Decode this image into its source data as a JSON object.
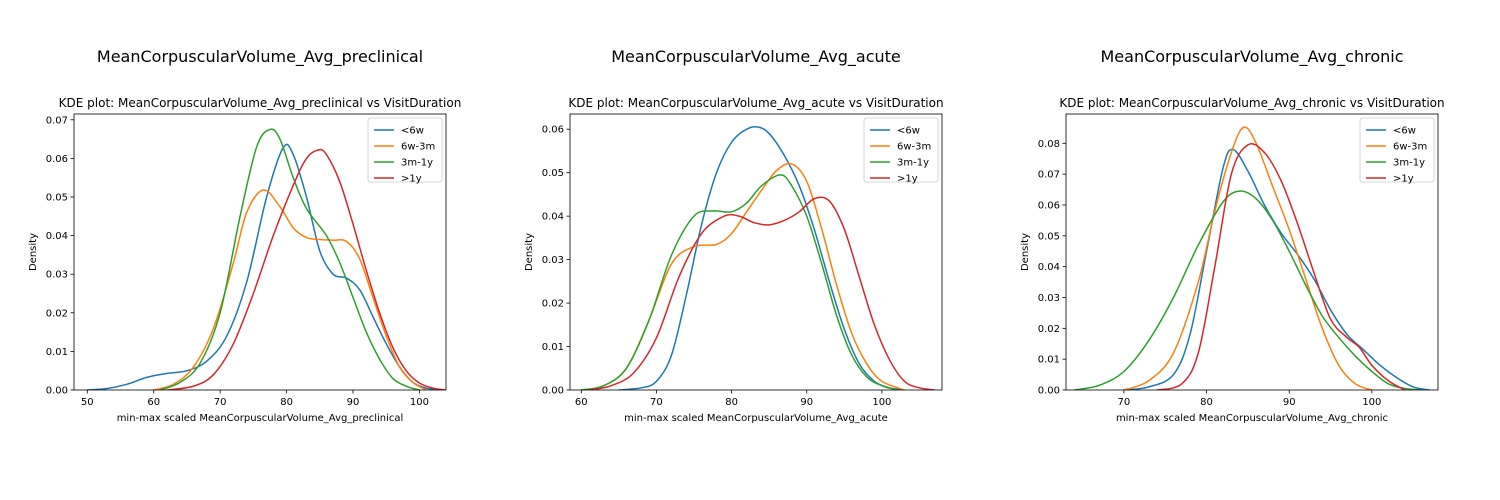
{
  "legend_labels": [
    "<6w",
    "6w-3m",
    "3m-1y",
    ">1y"
  ],
  "colors": [
    "#1f77b4",
    "#ff7f0e",
    "#2ca02c",
    "#d62728"
  ],
  "chart_data": [
    {
      "type": "line",
      "suptitle": "MeanCorpuscularVolume_Avg_preclinical",
      "title": "KDE plot:  MeanCorpuscularVolume_Avg_preclinical vs VisitDuration",
      "xlabel": "min-max scaled MeanCorpuscularVolume_Avg_preclinical",
      "ylabel": "Density",
      "xlim": [
        48,
        104
      ],
      "ylim": [
        0,
        0.0715
      ],
      "xticks": [
        50,
        60,
        70,
        80,
        90,
        100
      ],
      "yticks": [
        0,
        0.01,
        0.02,
        0.03,
        0.04,
        0.05,
        0.06,
        0.07
      ],
      "ytick_labels": [
        "0.00",
        "0.01",
        "0.02",
        "0.03",
        "0.04",
        "0.05",
        "0.06",
        "0.07"
      ],
      "grid": false,
      "legend": "top-right",
      "series": [
        {
          "name": "<6w",
          "points": [
            [
              50,
              0
            ],
            [
              53,
              0.0004
            ],
            [
              56,
              0.0015
            ],
            [
              59,
              0.0033
            ],
            [
              62,
              0.0043
            ],
            [
              65,
              0.005
            ],
            [
              68,
              0.0075
            ],
            [
              71,
              0.014
            ],
            [
              74,
              0.028
            ],
            [
              77,
              0.05
            ],
            [
              79.5,
              0.0628
            ],
            [
              81,
              0.061
            ],
            [
              83,
              0.05
            ],
            [
              85,
              0.036
            ],
            [
              87,
              0.03
            ],
            [
              89,
              0.029
            ],
            [
              91,
              0.026
            ],
            [
              93,
              0.019
            ],
            [
              95,
              0.012
            ],
            [
              97,
              0.006
            ],
            [
              99,
              0.002
            ],
            [
              101,
              0.0005
            ],
            [
              103,
              0
            ]
          ]
        },
        {
          "name": "6w-3m",
          "points": [
            [
              60,
              0
            ],
            [
              63,
              0.0015
            ],
            [
              66,
              0.006
            ],
            [
              69,
              0.016
            ],
            [
              72,
              0.033
            ],
            [
              74,
              0.046
            ],
            [
              76.5,
              0.0518
            ],
            [
              79,
              0.0475
            ],
            [
              81,
              0.042
            ],
            [
              83,
              0.0395
            ],
            [
              85,
              0.039
            ],
            [
              87,
              0.0388
            ],
            [
              89,
              0.0385
            ],
            [
              91,
              0.034
            ],
            [
              93,
              0.024
            ],
            [
              95,
              0.014
            ],
            [
              97,
              0.006
            ],
            [
              99,
              0.002
            ],
            [
              101,
              0
            ]
          ]
        },
        {
          "name": "3m-1y",
          "points": [
            [
              61,
              0
            ],
            [
              64,
              0.002
            ],
            [
              67,
              0.007
            ],
            [
              70,
              0.02
            ],
            [
              73,
              0.045
            ],
            [
              75.5,
              0.063
            ],
            [
              77.5,
              0.0675
            ],
            [
              79,
              0.065
            ],
            [
              81,
              0.055
            ],
            [
              83,
              0.047
            ],
            [
              86,
              0.04
            ],
            [
              88,
              0.033
            ],
            [
              90,
              0.024
            ],
            [
              92,
              0.015
            ],
            [
              94,
              0.008
            ],
            [
              96,
              0.003
            ],
            [
              98,
              0.001
            ],
            [
              100,
              0
            ]
          ]
        },
        {
          "name": ">1y",
          "points": [
            [
              62,
              0
            ],
            [
              66,
              0.001
            ],
            [
              69,
              0.004
            ],
            [
              72,
              0.012
            ],
            [
              75,
              0.025
            ],
            [
              78,
              0.04
            ],
            [
              81,
              0.053
            ],
            [
              83,
              0.06
            ],
            [
              84.8,
              0.0622
            ],
            [
              86,
              0.061
            ],
            [
              88,
              0.054
            ],
            [
              90,
              0.043
            ],
            [
              92,
              0.031
            ],
            [
              94,
              0.02
            ],
            [
              96,
              0.011
            ],
            [
              98,
              0.005
            ],
            [
              100,
              0.0018
            ],
            [
              102,
              0.0005
            ],
            [
              104,
              0
            ]
          ]
        }
      ]
    },
    {
      "type": "line",
      "suptitle": "MeanCorpuscularVolume_Avg_acute",
      "title": "KDE plot:  MeanCorpuscularVolume_Avg_acute vs VisitDuration",
      "xlabel": "min-max scaled MeanCorpuscularVolume_Avg_acute",
      "ylabel": "Density",
      "xlim": [
        58.5,
        108
      ],
      "ylim": [
        0,
        0.0635
      ],
      "xticks": [
        60,
        70,
        80,
        90,
        100
      ],
      "yticks": [
        0,
        0.01,
        0.02,
        0.03,
        0.04,
        0.05,
        0.06
      ],
      "ytick_labels": [
        "0.00",
        "0.01",
        "0.02",
        "0.03",
        "0.04",
        "0.05",
        "0.06"
      ],
      "grid": false,
      "legend": "top-right",
      "series": [
        {
          "name": "<6w",
          "points": [
            [
              65,
              0
            ],
            [
              68,
              0.0005
            ],
            [
              70,
              0.002
            ],
            [
              72,
              0.008
            ],
            [
              74,
              0.022
            ],
            [
              76,
              0.038
            ],
            [
              78,
              0.05
            ],
            [
              80,
              0.057
            ],
            [
              82,
              0.06
            ],
            [
              83.5,
              0.0605
            ],
            [
              85,
              0.059
            ],
            [
              87,
              0.054
            ],
            [
              89,
              0.047
            ],
            [
              91,
              0.037
            ],
            [
              93,
              0.025
            ],
            [
              95,
              0.014
            ],
            [
              97,
              0.006
            ],
            [
              99,
              0.002
            ],
            [
              101,
              0.0005
            ],
            [
              103,
              0
            ]
          ]
        },
        {
          "name": "6w-3m",
          "points": [
            [
              60,
              0
            ],
            [
              63,
              0.001
            ],
            [
              66,
              0.005
            ],
            [
              69,
              0.016
            ],
            [
              72,
              0.029
            ],
            [
              75,
              0.033
            ],
            [
              78,
              0.0335
            ],
            [
              80,
              0.036
            ],
            [
              82,
              0.041
            ],
            [
              84,
              0.046
            ],
            [
              86,
              0.0505
            ],
            [
              88,
              0.052
            ],
            [
              90,
              0.048
            ],
            [
              92,
              0.037
            ],
            [
              94,
              0.024
            ],
            [
              96,
              0.013
            ],
            [
              98,
              0.006
            ],
            [
              100,
              0.002
            ],
            [
              103,
              0
            ]
          ]
        },
        {
          "name": "3m-1y",
          "points": [
            [
              60,
              0
            ],
            [
              63,
              0.001
            ],
            [
              66,
              0.005
            ],
            [
              69,
              0.016
            ],
            [
              72,
              0.031
            ],
            [
              75,
              0.04
            ],
            [
              77.5,
              0.0412
            ],
            [
              80,
              0.041
            ],
            [
              82,
              0.043
            ],
            [
              84,
              0.047
            ],
            [
              86.5,
              0.0495
            ],
            [
              88,
              0.047
            ],
            [
              90,
              0.04
            ],
            [
              92,
              0.029
            ],
            [
              94,
              0.017
            ],
            [
              96,
              0.008
            ],
            [
              98,
              0.003
            ],
            [
              100,
              0.001
            ],
            [
              102,
              0
            ]
          ]
        },
        {
          "name": ">1y",
          "points": [
            [
              61,
              0
            ],
            [
              64,
              0.001
            ],
            [
              67,
              0.004
            ],
            [
              70,
              0.012
            ],
            [
              73,
              0.026
            ],
            [
              76,
              0.036
            ],
            [
              79,
              0.04
            ],
            [
              81,
              0.04
            ],
            [
              83,
              0.0385
            ],
            [
              85,
              0.038
            ],
            [
              87,
              0.039
            ],
            [
              89,
              0.041
            ],
            [
              91,
              0.044
            ],
            [
              93,
              0.0435
            ],
            [
              95,
              0.037
            ],
            [
              97,
              0.026
            ],
            [
              99,
              0.015
            ],
            [
              101,
              0.007
            ],
            [
              103,
              0.002
            ],
            [
              105,
              0.0005
            ],
            [
              107,
              0
            ]
          ]
        }
      ]
    },
    {
      "type": "line",
      "suptitle": "MeanCorpuscularVolume_Avg_chronic",
      "title": "KDE plot:  MeanCorpuscularVolume_Avg_chronic vs VisitDuration",
      "xlabel": "min-max scaled MeanCorpuscularVolume_Avg_chronic",
      "ylabel": "Density",
      "xlim": [
        63,
        108
      ],
      "ylim": [
        0,
        0.0895
      ],
      "xticks": [
        70,
        80,
        90,
        100
      ],
      "yticks": [
        0,
        0.01,
        0.02,
        0.03,
        0.04,
        0.05,
        0.06,
        0.07,
        0.08
      ],
      "ytick_labels": [
        "0.00",
        "0.01",
        "0.02",
        "0.03",
        "0.04",
        "0.05",
        "0.06",
        "0.07",
        "0.08"
      ],
      "grid": false,
      "legend": "top-right",
      "series": [
        {
          "name": "<6w",
          "points": [
            [
              70,
              0
            ],
            [
              73,
              0.001
            ],
            [
              76,
              0.005
            ],
            [
              78,
              0.018
            ],
            [
              80,
              0.045
            ],
            [
              82,
              0.072
            ],
            [
              83.2,
              0.078
            ],
            [
              85,
              0.071
            ],
            [
              87,
              0.06
            ],
            [
              89,
              0.051
            ],
            [
              91,
              0.044
            ],
            [
              93,
              0.036
            ],
            [
              95,
              0.026
            ],
            [
              97,
              0.018
            ],
            [
              99,
              0.013
            ],
            [
              101,
              0.008
            ],
            [
              103,
              0.004
            ],
            [
              105,
              0.001
            ],
            [
              107,
              0
            ]
          ]
        },
        {
          "name": "6w-3m",
          "points": [
            [
              70,
              0
            ],
            [
              73,
              0.003
            ],
            [
              76,
              0.012
            ],
            [
              79,
              0.035
            ],
            [
              81,
              0.058
            ],
            [
              83,
              0.077
            ],
            [
              84.5,
              0.0852
            ],
            [
              86,
              0.08
            ],
            [
              88,
              0.066
            ],
            [
              90,
              0.052
            ],
            [
              92,
              0.036
            ],
            [
              94,
              0.02
            ],
            [
              96,
              0.008
            ],
            [
              98,
              0.002
            ],
            [
              100,
              0
            ]
          ]
        },
        {
          "name": "3m-1y",
          "points": [
            [
              64,
              0
            ],
            [
              67,
              0.0015
            ],
            [
              70,
              0.006
            ],
            [
              73,
              0.016
            ],
            [
              76,
              0.03
            ],
            [
              79,
              0.047
            ],
            [
              82,
              0.061
            ],
            [
              84,
              0.0645
            ],
            [
              86,
              0.062
            ],
            [
              88,
              0.055
            ],
            [
              90,
              0.045
            ],
            [
              92,
              0.034
            ],
            [
              94,
              0.024
            ],
            [
              96,
              0.017
            ],
            [
              98,
              0.011
            ],
            [
              100,
              0.006
            ],
            [
              102,
              0.002
            ],
            [
              104,
              0.0005
            ],
            [
              106,
              0
            ]
          ]
        },
        {
          "name": ">1y",
          "points": [
            [
              74,
              0
            ],
            [
              77,
              0.002
            ],
            [
              79,
              0.012
            ],
            [
              81,
              0.04
            ],
            [
              83,
              0.07
            ],
            [
              85,
              0.0795
            ],
            [
              87,
              0.077
            ],
            [
              89,
              0.068
            ],
            [
              91,
              0.054
            ],
            [
              93,
              0.038
            ],
            [
              95,
              0.023
            ],
            [
              97,
              0.017
            ],
            [
              98.5,
              0.0138
            ],
            [
              100,
              0.008
            ],
            [
              102,
              0.003
            ],
            [
              104,
              0
            ]
          ]
        }
      ]
    }
  ]
}
